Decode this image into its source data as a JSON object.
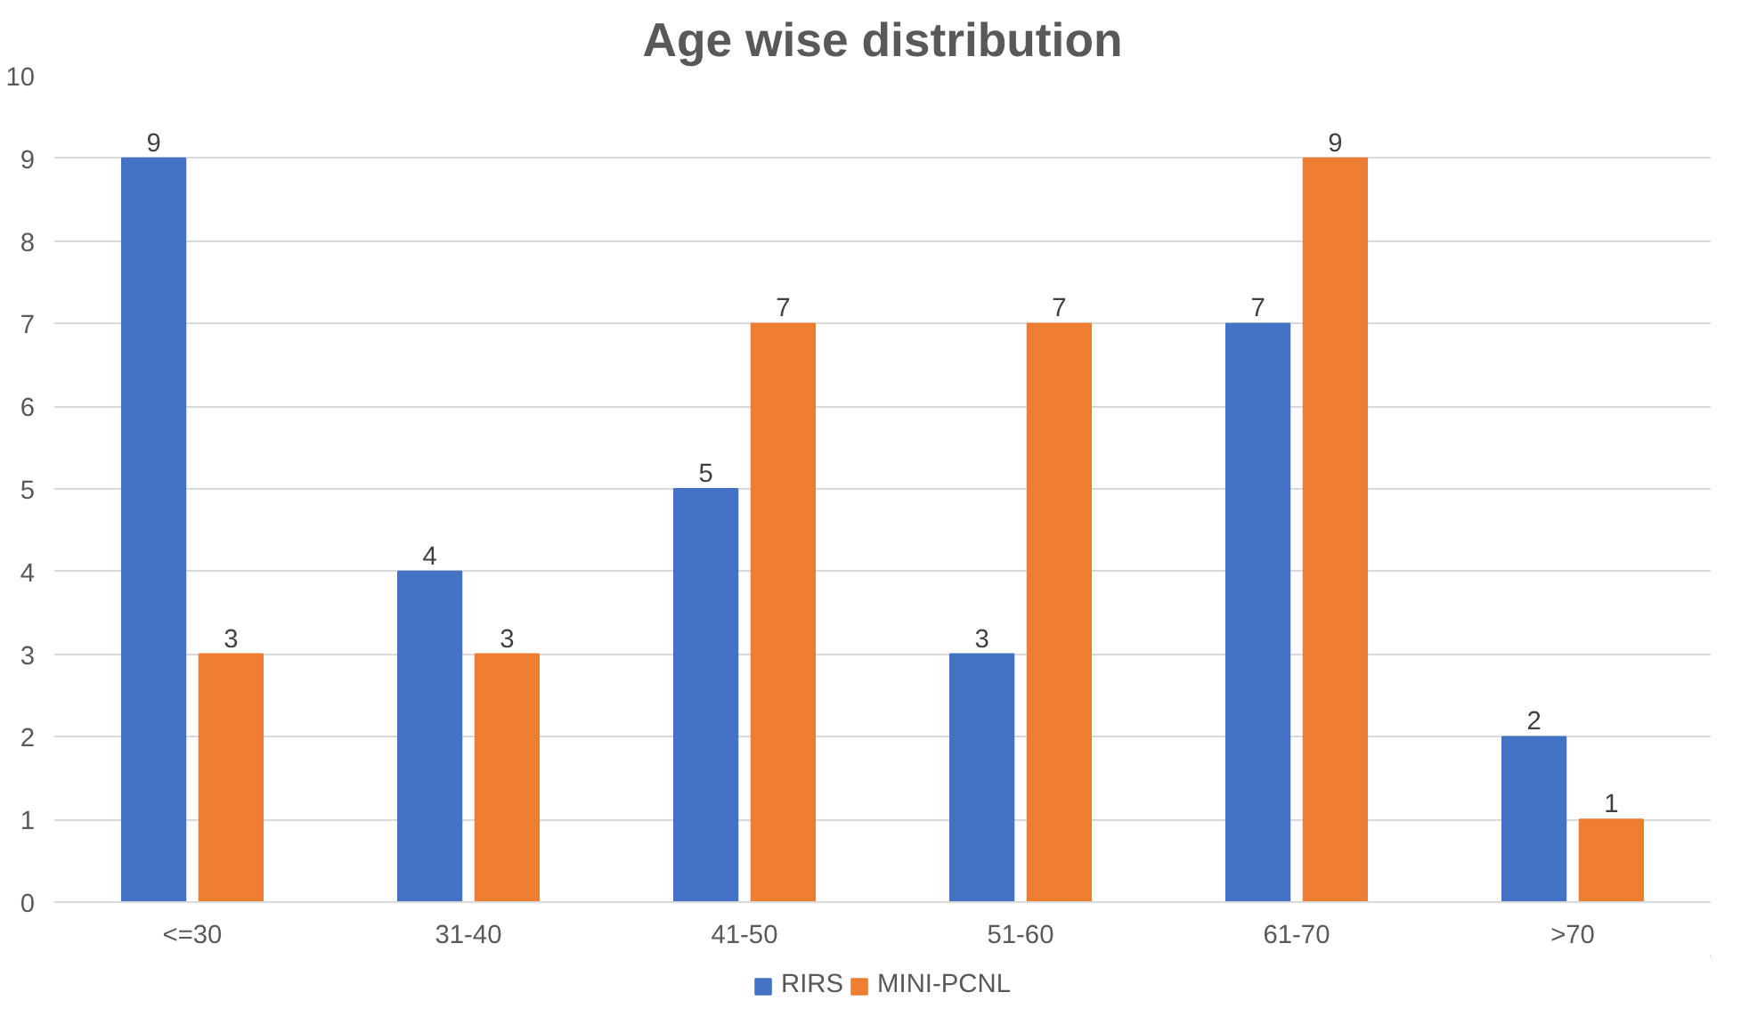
{
  "chart_data": {
    "type": "bar",
    "title": "Age wise distribution",
    "categories": [
      "<=30",
      "31-40",
      "41-50",
      "51-60",
      "61-70",
      ">70"
    ],
    "series": [
      {
        "name": "RIRS",
        "color": "#4472c4",
        "values": [
          9,
          4,
          5,
          3,
          7,
          2
        ]
      },
      {
        "name": "MINI-PCNL",
        "color": "#ed7d31",
        "values": [
          3,
          3,
          7,
          7,
          9,
          1
        ]
      }
    ],
    "ylim": [
      0,
      10
    ],
    "yticks": [
      0,
      1,
      2,
      3,
      4,
      5,
      6,
      7,
      8,
      9,
      10
    ],
    "grid": "y",
    "legend": "bottom",
    "data_labels": true
  }
}
